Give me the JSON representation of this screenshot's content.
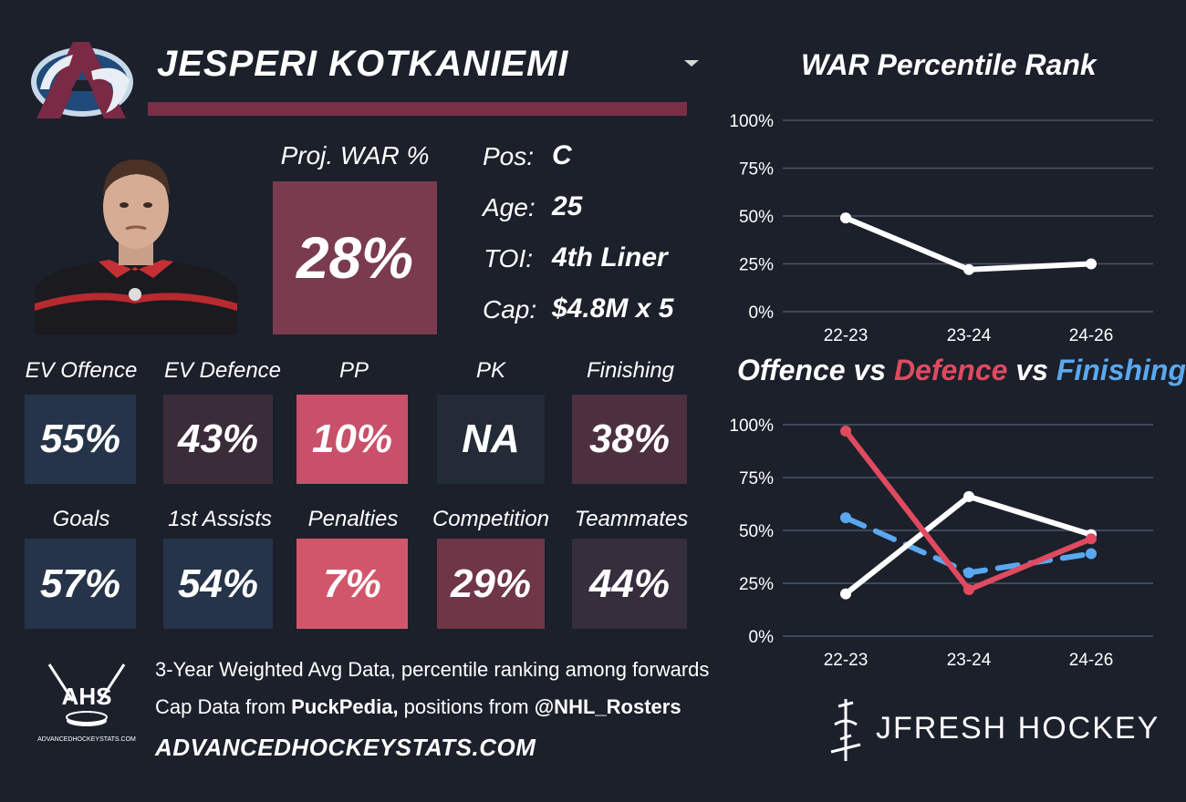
{
  "player": {
    "name": "JESPERI KOTKANIEMI",
    "proj_label": "Proj. WAR %",
    "proj_value": "28%"
  },
  "info": [
    {
      "label": "Pos:",
      "value": "C"
    },
    {
      "label": "Age:",
      "value": "25"
    },
    {
      "label": "TOI:",
      "value": "4th Liner"
    },
    {
      "label": "Cap:",
      "value": "$4.8M x 5"
    }
  ],
  "stats_row1": [
    {
      "label": "EV Offence",
      "value": "55%",
      "color": "#263449"
    },
    {
      "label": "EV Defence",
      "value": "43%",
      "color": "#3b2c3a"
    },
    {
      "label": "PP",
      "value": "10%",
      "color": "#c9506a"
    },
    {
      "label": "PK",
      "value": "NA",
      "color": "#232b37"
    },
    {
      "label": "Finishing",
      "value": "38%",
      "color": "#4c3040"
    }
  ],
  "stats_row2": [
    {
      "label": "Goals",
      "value": "57%",
      "color": "#263449"
    },
    {
      "label": "1st Assists",
      "value": "54%",
      "color": "#263449"
    },
    {
      "label": "Penalties",
      "value": "7%",
      "color": "#d2566a"
    },
    {
      "label": "Competition",
      "value": "29%",
      "color": "#6e3647"
    },
    {
      "label": "Teammates",
      "value": "44%",
      "color": "#362e3d"
    }
  ],
  "footer": {
    "line1": "3-Year Weighted Avg Data, percentile ranking among forwards",
    "line2_pre": "Cap Data from ",
    "line2_b1": "PuckPedia,",
    "line2_mid": " positions from ",
    "line2_b2": "@NHL_Rosters",
    "url": "ADVANCEDHOCKEYSTATS.COM",
    "ahs_logo": "AHS",
    "ahs_small": "ADVANCEDHOCKEYSTATS.COM",
    "brand": "JFRESH HOCKEY"
  },
  "colors": {
    "background": "#1b202b",
    "accent": "#7b2f45",
    "offence": "#ffffff",
    "defence": "#e04a5f",
    "finishing": "#5aa8f0"
  },
  "chart_data": [
    {
      "type": "line",
      "title": "WAR Percentile Rank",
      "categories": [
        "22-23",
        "23-24",
        "24-26"
      ],
      "yticks": [
        "100%",
        "75%",
        "50%",
        "25%",
        "0%"
      ],
      "ylim": [
        0,
        100
      ],
      "series": [
        {
          "values": [
            49,
            22,
            25
          ],
          "color": "#ffffff",
          "dash": false
        }
      ]
    },
    {
      "type": "line",
      "title_parts": [
        {
          "text": "Offence",
          "color": "#ffffff"
        },
        {
          "text": " vs ",
          "color": "#ffffff"
        },
        {
          "text": "Defence",
          "color": "#e04a5f"
        },
        {
          "text": " vs ",
          "color": "#ffffff"
        },
        {
          "text": "Finishing",
          "color": "#5aa8f0"
        }
      ],
      "categories": [
        "22-23",
        "23-24",
        "24-26"
      ],
      "yticks": [
        "100%",
        "75%",
        "50%",
        "25%",
        "0%"
      ],
      "ylim": [
        0,
        100
      ],
      "series": [
        {
          "values": [
            56,
            30,
            39
          ],
          "color": "#5aa8f0",
          "dash": true
        },
        {
          "values": [
            20,
            66,
            48
          ],
          "color": "#ffffff",
          "dash": false
        },
        {
          "values": [
            97,
            22,
            46
          ],
          "color": "#e04a5f",
          "dash": false
        }
      ]
    }
  ]
}
